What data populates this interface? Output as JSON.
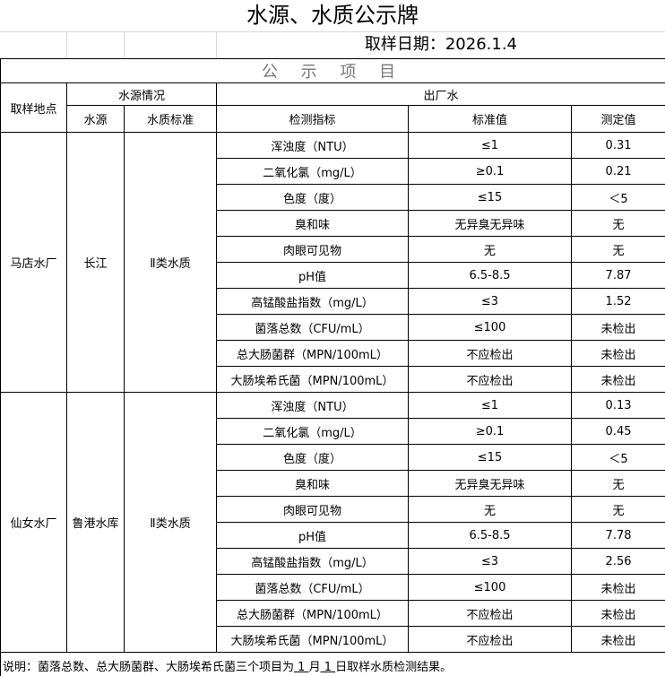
{
  "title": "水源、水质公示牌",
  "sample_date": "取样日期：2026.1.4",
  "section_title": "公 示 项 目",
  "headers": {
    "location": "取样地点",
    "source_group": "水源情况",
    "output_group": "出厂水",
    "source": "水源",
    "standard": "水质标准",
    "indicator": "检测指标",
    "std_value": "标准值",
    "measured": "测定值"
  },
  "plants": [
    {
      "name": "马店水厂",
      "source": "长江",
      "standard": "Ⅱ类水质",
      "rows": [
        [
          "浑浊度（NTU）",
          "≤1",
          "0.31"
        ],
        [
          "二氧化氯（mg/L）",
          "≥0.1",
          "0.21"
        ],
        [
          "色度（度）",
          "≤15",
          "＜5"
        ],
        [
          "臭和味",
          "无异臭无异味",
          "无"
        ],
        [
          "肉眼可见物",
          "无",
          "无"
        ],
        [
          "pH值",
          "6.5-8.5",
          "7.87"
        ],
        [
          "高锰酸盐指数（mg/L）",
          "≤3",
          "1.52"
        ],
        [
          "菌落总数（CFU/mL）",
          "≤100",
          "未检出"
        ],
        [
          "总大肠菌群（MPN/100mL）",
          "不应检出",
          "未检出"
        ],
        [
          "大肠埃希氏菌（MPN/100mL）",
          "不应检出",
          "未检出"
        ]
      ]
    },
    {
      "name": "仙女水厂",
      "source": "鲁港水库",
      "standard": "Ⅱ类水质",
      "rows": [
        [
          "浑浊度（NTU）",
          "≤1",
          "0.13"
        ],
        [
          "二氧化氯（mg/L）",
          "≥0.1",
          "0.45"
        ],
        [
          "色度（度）",
          "≤15",
          "＜5"
        ],
        [
          "臭和味",
          "无异臭无异味",
          "无"
        ],
        [
          "肉眼可见物",
          "无",
          "无"
        ],
        [
          "pH值",
          "6.5-8.5",
          "7.78"
        ],
        [
          "高锰酸盐指数（mg/L）",
          "≤3",
          "2.56"
        ],
        [
          "菌落总数（CFU/mL）",
          "≤100",
          "未检出"
        ],
        [
          "总大肠菌群（MPN/100mL）",
          "不应检出",
          "未检出"
        ],
        [
          "大肠埃希氏菌（MPN/100mL）",
          "不应检出",
          "未检出"
        ]
      ]
    }
  ],
  "note": {
    "prefix": "说明：菌落总数、总大肠菌群、大肠埃希氏菌三个项目为",
    "month": " 1 ",
    "month_label": "月",
    "day": " 1 ",
    "suffix": "日取样水质检测结果。"
  }
}
